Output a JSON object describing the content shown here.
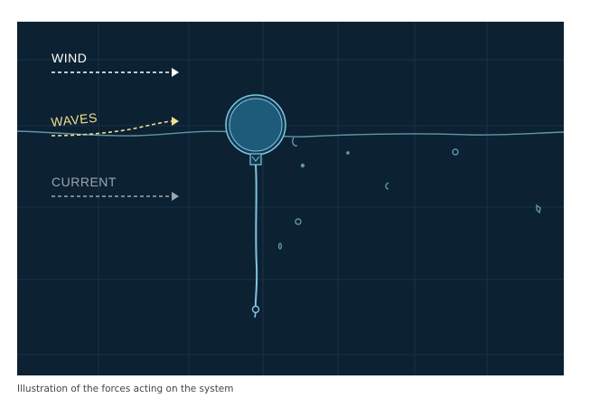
{
  "figure": {
    "labels": {
      "wind": "WIND",
      "waves": "WAVES",
      "current": "CURRENT"
    }
  },
  "caption": "Illustration of the forces acting on the system",
  "colors": {
    "background": "#0c2131",
    "grid": "#17334a",
    "wind": "#ffffff",
    "waves": "#f1de93",
    "current": "#9aa7b2",
    "buoy_fill": "#1e5a7a",
    "buoy_stroke": "#7ec6e2",
    "water_line": "#5f95ae"
  }
}
